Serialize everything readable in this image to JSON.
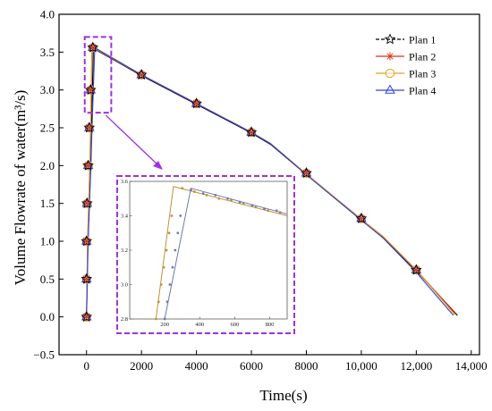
{
  "chart_data": {
    "type": "line",
    "xlabel": "Time(s)",
    "ylabel": "Volume Flowrate of water(m³/s)",
    "xlim": [
      -1000,
      14300
    ],
    "ylim": [
      -0.5,
      4.0
    ],
    "xticks": [
      0,
      2000,
      4000,
      6000,
      8000,
      10000,
      12000,
      14000
    ],
    "xtick_labels": [
      "0",
      "2000",
      "4000",
      "6000",
      "8000",
      "10,000",
      "12,000",
      "14,000"
    ],
    "yticks": [
      -0.5,
      0.0,
      0.5,
      1.0,
      1.5,
      2.0,
      2.5,
      3.0,
      3.5,
      4.0
    ],
    "ytick_labels": [
      "−0.5",
      "0.0",
      "0.5",
      "1.0",
      "1.5",
      "2.0",
      "2.5",
      "3.0",
      "3.5",
      "4.0"
    ],
    "legend_position": "top-right",
    "series": [
      {
        "name": "Plan 1",
        "marker": "star",
        "color": "#000000",
        "x": [
          0,
          50,
          100,
          150,
          180,
          250,
          2000,
          4000,
          6000,
          6700,
          8000,
          10000,
          10800,
          12000,
          13500
        ],
        "y": [
          0.0,
          1.0,
          1.5,
          2.0,
          2.5,
          3.55,
          3.19,
          2.81,
          2.43,
          2.28,
          1.88,
          1.28,
          1.05,
          0.61,
          0.02
        ]
      },
      {
        "name": "Plan 2",
        "marker": "asterisk",
        "color": "#e03010",
        "x": [
          0,
          40,
          80,
          120,
          150,
          200,
          2000,
          4000,
          6000,
          6700,
          8000,
          10000,
          10800,
          12000,
          13450
        ],
        "y": [
          0.0,
          1.0,
          1.5,
          2.0,
          2.5,
          3.57,
          3.2,
          2.82,
          2.44,
          2.29,
          1.89,
          1.29,
          1.06,
          0.62,
          0.03
        ]
      },
      {
        "name": "Plan 3",
        "marker": "circle",
        "color": "#e0a020",
        "x": [
          0,
          40,
          80,
          120,
          150,
          200,
          2000,
          4000,
          6000,
          6700,
          8000,
          10000,
          10800,
          12000,
          13400
        ],
        "y": [
          0.0,
          1.0,
          1.5,
          2.0,
          2.5,
          3.57,
          3.2,
          2.82,
          2.44,
          2.29,
          1.89,
          1.29,
          1.06,
          0.62,
          0.03
        ]
      },
      {
        "name": "Plan 4",
        "marker": "triangle",
        "color": "#3040e0",
        "x": [
          0,
          60,
          110,
          160,
          200,
          300,
          2000,
          4000,
          6000,
          6700,
          8000,
          10000,
          10800,
          12000,
          13350
        ],
        "y": [
          0.0,
          1.0,
          1.5,
          2.0,
          2.5,
          3.56,
          3.2,
          2.82,
          2.44,
          2.29,
          1.88,
          1.28,
          1.04,
          0.59,
          0.02
        ]
      }
    ],
    "marker_points": {
      "x": [
        0,
        0,
        0,
        20,
        60,
        100,
        150,
        230,
        2000,
        4000,
        6000,
        8000,
        10000,
        12000
      ],
      "y": [
        0.0,
        0.5,
        1.0,
        1.5,
        2.0,
        2.5,
        3.0,
        3.56,
        3.2,
        2.82,
        2.44,
        1.9,
        1.3,
        0.62
      ]
    },
    "zoom_region": {
      "xlim": [
        0,
        900
      ],
      "ylim": [
        2.7,
        3.7
      ]
    },
    "inset": {
      "xlim": [
        0,
        900
      ],
      "ylim": [
        2.8,
        3.6
      ],
      "xticks": [
        200,
        400,
        600,
        800
      ],
      "xtick_labels": [
        "200",
        "400",
        "600",
        "800"
      ],
      "yticks": [
        2.8,
        3.0,
        3.2,
        3.4,
        3.6
      ],
      "ytick_labels": [
        "2.8",
        "3.0",
        "3.2",
        "3.4",
        "3.6"
      ],
      "series": [
        {
          "color": "#c0903a",
          "marker": "dot",
          "x": [
            150,
            250,
            900
          ],
          "y": [
            2.8,
            3.57,
            3.4
          ],
          "marker_x": [
            150,
            165,
            180,
            195,
            210,
            225,
            240,
            300,
            370,
            440,
            510,
            580,
            650,
            720,
            790,
            860
          ],
          "marker_y": [
            2.8,
            2.9,
            3.0,
            3.1,
            3.2,
            3.3,
            3.4,
            3.56,
            3.54,
            3.52,
            3.5,
            3.49,
            3.47,
            3.45,
            3.43,
            3.42
          ]
        },
        {
          "color": "#6a7ab0",
          "marker": "dot",
          "x": [
            200,
            350,
            900
          ],
          "y": [
            2.8,
            3.56,
            3.41
          ],
          "marker_x": [
            200,
            215,
            230,
            245,
            260,
            275,
            290,
            350,
            420,
            490,
            560,
            630,
            700,
            770,
            840
          ],
          "marker_y": [
            2.8,
            2.9,
            3.0,
            3.1,
            3.2,
            3.3,
            3.4,
            3.55,
            3.53,
            3.52,
            3.5,
            3.48,
            3.46,
            3.44,
            3.43
          ]
        }
      ]
    },
    "colors": {
      "highlight": "#a030e0"
    }
  }
}
